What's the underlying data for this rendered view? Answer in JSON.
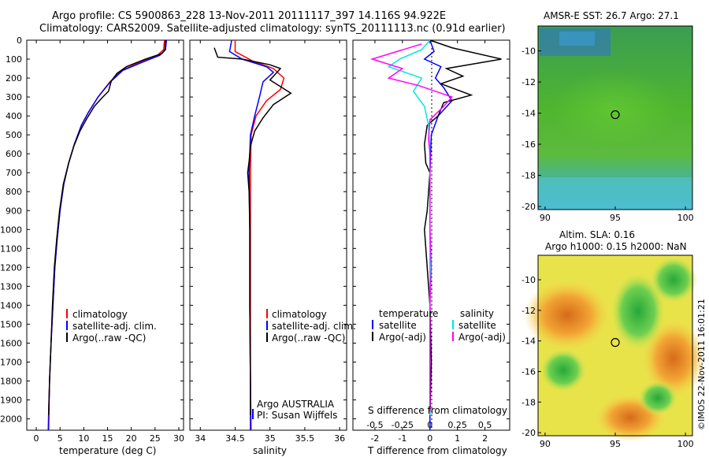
{
  "header": {
    "line1": "Argo profile: CS 5900863_228 13-Nov-2011 20111117_397 14.116S 94.922E",
    "line2": "Climatology: CARS2009. Satellite-adjusted climatology: synTS_20111113.nc (0.91d earlier)"
  },
  "colors": {
    "climatology": "#ff0000",
    "satellite": "#0000ff",
    "argo": "#000000",
    "argo_s": "#00e5e5",
    "argo_t": "#ff00ff"
  },
  "depth_axis": {
    "ticks": [
      "0",
      "100",
      "200",
      "300",
      "400",
      "500",
      "600",
      "700",
      "800",
      "900",
      "1000",
      "1100",
      "1200",
      "1300",
      "1400",
      "1500",
      "1600",
      "1700",
      "1800",
      "1900",
      "2000"
    ]
  },
  "chart_data": [
    {
      "id": "temperature-profile",
      "type": "line",
      "xlabel": "temperature (deg C)",
      "ylabel": "",
      "xlim": [
        -2,
        31
      ],
      "ylim": [
        2060,
        0
      ],
      "xticks": [
        "0",
        "5",
        "10",
        "15",
        "20",
        "25",
        "30"
      ],
      "legend": [
        "climatology",
        "satellite-adj. clim.",
        "Argo(..raw -QC)"
      ],
      "series": [
        {
          "name": "climatology",
          "color": "#ff0000",
          "points": [
            [
              27,
              0
            ],
            [
              26.8,
              50
            ],
            [
              25.5,
              80
            ],
            [
              22,
              115
            ],
            [
              18,
              160
            ],
            [
              15.5,
              220
            ],
            [
              13,
              300
            ],
            [
              11,
              380
            ],
            [
              9.5,
              450
            ],
            [
              8,
              550
            ],
            [
              6.8,
              650
            ],
            [
              5.8,
              760
            ],
            [
              5,
              900
            ],
            [
              4.4,
              1050
            ],
            [
              3.9,
              1200
            ],
            [
              3.5,
              1400
            ],
            [
              3.1,
              1600
            ],
            [
              2.8,
              1800
            ],
            [
              2.5,
              2060
            ]
          ]
        },
        {
          "name": "satellite-adj. clim.",
          "color": "#0000ff",
          "points": [
            [
              27.4,
              0
            ],
            [
              27.2,
              50
            ],
            [
              26,
              80
            ],
            [
              22.5,
              115
            ],
            [
              18.2,
              160
            ],
            [
              15.6,
              220
            ],
            [
              13,
              300
            ],
            [
              11,
              380
            ],
            [
              9.5,
              450
            ],
            [
              8,
              550
            ],
            [
              6.8,
              650
            ],
            [
              5.8,
              760
            ],
            [
              5,
              900
            ],
            [
              4.4,
              1050
            ],
            [
              3.9,
              1200
            ],
            [
              3.5,
              1400
            ],
            [
              3.1,
              1600
            ],
            [
              2.8,
              1800
            ],
            [
              2.6,
              2060
            ]
          ]
        },
        {
          "name": "Argo(..raw -QC)",
          "color": "#000000",
          "points": [
            [
              27.2,
              0
            ],
            [
              27.1,
              50
            ],
            [
              26.5,
              70
            ],
            [
              23,
              100
            ],
            [
              19,
              140
            ],
            [
              17,
              175
            ],
            [
              15.8,
              215
            ],
            [
              15.2,
              270
            ],
            [
              14,
              300
            ],
            [
              12.2,
              350
            ],
            [
              10.5,
              420
            ],
            [
              9.2,
              480
            ],
            [
              7.9,
              560
            ],
            [
              6.8,
              650
            ],
            [
              5.7,
              760
            ],
            [
              4.9,
              900
            ],
            [
              4.3,
              1050
            ],
            [
              3.8,
              1200
            ],
            [
              3.4,
              1400
            ],
            [
              3.1,
              1600
            ],
            [
              2.8,
              1800
            ],
            [
              2.6,
              1980
            ]
          ]
        }
      ]
    },
    {
      "id": "salinity-profile",
      "type": "line",
      "xlabel": "salinity",
      "ylabel": "",
      "xlim": [
        33.85,
        36.1
      ],
      "ylim": [
        2060,
        0
      ],
      "xticks": [
        "34",
        "34.5",
        "35",
        "35.5",
        "36"
      ],
      "legend": [
        "climatology",
        "satellite-adj. clim.",
        "Argo(..raw -QC)"
      ],
      "annotation": [
        "Argo AUSTRALIA",
        "PI: Susan Wijffels"
      ],
      "series": [
        {
          "name": "climatology",
          "color": "#ff0000",
          "points": [
            [
              34.5,
              0
            ],
            [
              34.5,
              60
            ],
            [
              34.75,
              110
            ],
            [
              35.05,
              150
            ],
            [
              35.2,
              200
            ],
            [
              35.15,
              260
            ],
            [
              34.95,
              320
            ],
            [
              34.8,
              400
            ],
            [
              34.73,
              500
            ],
            [
              34.72,
              700
            ],
            [
              34.72,
              1000
            ],
            [
              34.72,
              1400
            ],
            [
              34.72,
              1800
            ],
            [
              34.73,
              2060
            ]
          ]
        },
        {
          "name": "satellite-adj. clim.",
          "color": "#0000ff",
          "points": [
            [
              34.45,
              0
            ],
            [
              34.42,
              60
            ],
            [
              34.6,
              100
            ],
            [
              34.95,
              140
            ],
            [
              35.05,
              170
            ],
            [
              34.9,
              220
            ],
            [
              34.85,
              300
            ],
            [
              34.78,
              400
            ],
            [
              34.72,
              500
            ],
            [
              34.7,
              700
            ],
            [
              34.71,
              1000
            ],
            [
              34.71,
              1400
            ],
            [
              34.72,
              1800
            ],
            [
              34.72,
              2060
            ]
          ]
        },
        {
          "name": "Argo(..raw -QC)",
          "color": "#000000",
          "points": [
            [
              34.2,
              40
            ],
            [
              34.25,
              90
            ],
            [
              34.6,
              100
            ],
            [
              35,
              130
            ],
            [
              35.15,
              150
            ],
            [
              35,
              210
            ],
            [
              35.3,
              280
            ],
            [
              35.05,
              340
            ],
            [
              34.9,
              410
            ],
            [
              34.78,
              480
            ],
            [
              34.72,
              560
            ],
            [
              34.7,
              640
            ],
            [
              34.68,
              700
            ],
            [
              34.7,
              800
            ],
            [
              34.71,
              1000
            ],
            [
              34.71,
              1400
            ],
            [
              34.72,
              1800
            ],
            [
              34.72,
              1980
            ]
          ]
        }
      ]
    },
    {
      "id": "difference-profile",
      "type": "line",
      "xlabel": "T difference from climatology",
      "xlabel_top": "S difference from climatology",
      "ylabel": "",
      "xlim": [
        -2.8,
        2.9
      ],
      "ylim": [
        2060,
        0
      ],
      "xticks": [
        "-2",
        "-1",
        "0",
        "1",
        "2"
      ],
      "xticks_s": [
        "-0.5",
        "-0.25",
        "0",
        "0.25",
        "0.5"
      ],
      "legend_titles": [
        "temperature",
        "salinity"
      ],
      "legend": [
        "satellite",
        "Argo(-adj)",
        "satellite",
        "Argo(-adj)"
      ],
      "series": [
        {
          "name": "temperature satellite",
          "color": "#0000ff",
          "points": [
            [
              0,
              0
            ],
            [
              0.15,
              60
            ],
            [
              -0.2,
              100
            ],
            [
              0.4,
              140
            ],
            [
              0.2,
              200
            ],
            [
              0.5,
              250
            ],
            [
              0.8,
              320
            ],
            [
              0.3,
              400
            ],
            [
              0.05,
              500
            ],
            [
              0,
              700
            ],
            [
              0,
              1000
            ],
            [
              0,
              1400
            ],
            [
              0,
              2060
            ]
          ]
        },
        {
          "name": "temperature Argo(-adj)",
          "color": "#000000",
          "points": [
            [
              0,
              0
            ],
            [
              0.8,
              40
            ],
            [
              2.6,
              100
            ],
            [
              0.6,
              150
            ],
            [
              1.2,
              190
            ],
            [
              0.4,
              230
            ],
            [
              1.5,
              290
            ],
            [
              0.5,
              330
            ],
            [
              0.3,
              400
            ],
            [
              -0.1,
              450
            ],
            [
              -0.2,
              550
            ],
            [
              -0.15,
              650
            ],
            [
              0,
              700
            ],
            [
              -0.1,
              900
            ],
            [
              -0.2,
              1000
            ],
            [
              -0.1,
              1200
            ],
            [
              0,
              1400
            ],
            [
              0.05,
              1700
            ],
            [
              0,
              1980
            ]
          ]
        },
        {
          "name": "salinity satellite",
          "color": "#00e5e5",
          "points": [
            [
              0,
              0
            ],
            [
              -0.3,
              50
            ],
            [
              -1.1,
              100
            ],
            [
              -1.5,
              140
            ],
            [
              -0.3,
              200
            ],
            [
              -0.6,
              270
            ],
            [
              -0.2,
              350
            ],
            [
              -0.05,
              450
            ],
            [
              0,
              600
            ],
            [
              0,
              800
            ],
            [
              0,
              1000
            ],
            [
              0,
              1400
            ],
            [
              0,
              1980
            ]
          ]
        },
        {
          "name": "salinity Argo(-adj)",
          "color": "#ff00ff",
          "points": [
            [
              -0.3,
              20
            ],
            [
              -1.2,
              60
            ],
            [
              -2.1,
              100
            ],
            [
              -1.0,
              150
            ],
            [
              -1.5,
              200
            ],
            [
              -0.4,
              240
            ],
            [
              0.8,
              300
            ],
            [
              0.5,
              350
            ],
            [
              0,
              420
            ],
            [
              -0.05,
              520
            ],
            [
              0,
              600
            ],
            [
              0,
              800
            ],
            [
              0,
              1000
            ],
            [
              0.05,
              1200
            ],
            [
              0,
              1400
            ],
            [
              0,
              1700
            ],
            [
              0,
              1960
            ]
          ]
        }
      ]
    },
    {
      "id": "sst-map",
      "type": "heatmap",
      "title": "AMSR-E SST: 26.7 Argo: 27.1",
      "xticks": [
        "90",
        "95",
        "100"
      ],
      "yticks": [
        "-10",
        "-12",
        "-14",
        "-16",
        "-18",
        "-20"
      ],
      "xlim": [
        89.5,
        100.5
      ],
      "ylim": [
        -20.2,
        -8.4
      ],
      "argo_position": [
        95,
        -14.1
      ]
    },
    {
      "id": "sla-map",
      "type": "heatmap",
      "title": [
        "Altim. SLA: 0.16",
        "Argo h1000: 0.15 h2000: NaN"
      ],
      "xticks": [
        "90",
        "95",
        "100"
      ],
      "yticks": [
        "-10",
        "-12",
        "-14",
        "-16",
        "-18",
        "-20"
      ],
      "xlim": [
        89.5,
        100.5
      ],
      "ylim": [
        -20.2,
        -8.4
      ],
      "argo_position": [
        95,
        -14.1
      ]
    }
  ],
  "side_stamp": "©IMOS 22-Nov-2011 16:01:21"
}
